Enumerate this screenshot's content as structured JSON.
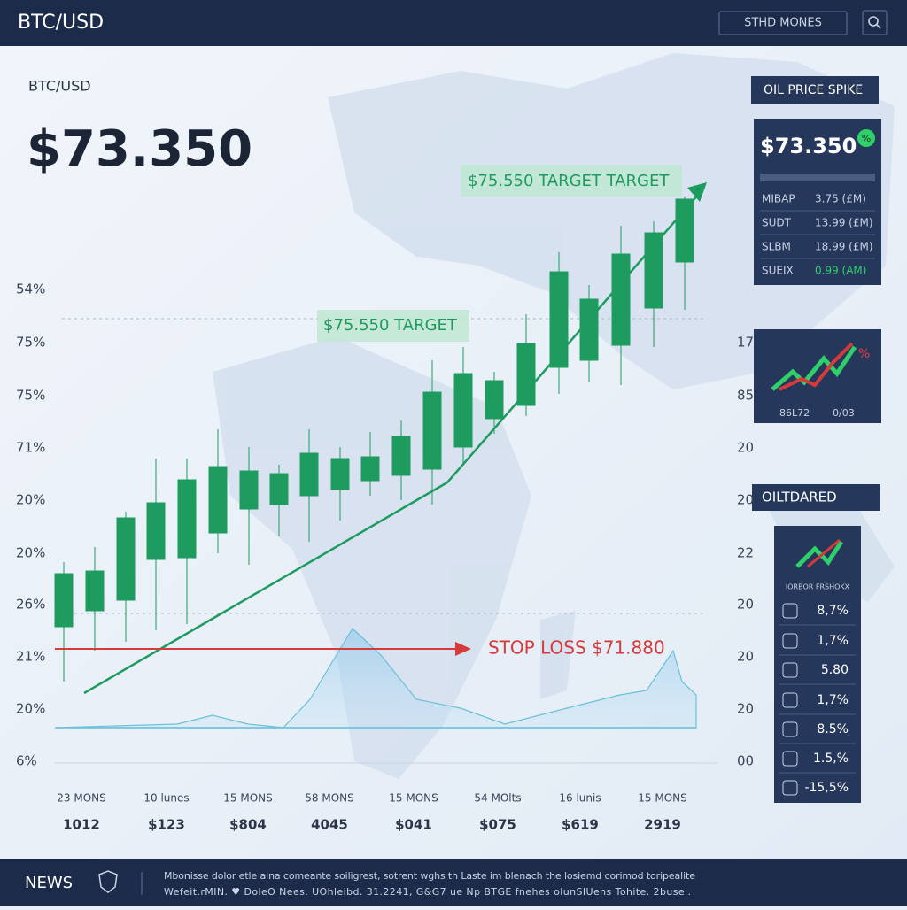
{
  "header": {
    "title": "BTC/USD",
    "search_button": "STHD MONES"
  },
  "main": {
    "pair": "BTC/USD",
    "price": "$73.350"
  },
  "annotations": {
    "target_top": "$75.550 TARGET TARGET",
    "target_mid": "$75.550 TARGET",
    "stop_loss": "STOP LOSS $71.880"
  },
  "left_axis": [
    "54%",
    "75%",
    "75%",
    "71%",
    "20%",
    "20%",
    "26%",
    "21%",
    "20%",
    "6%"
  ],
  "right_axis": [
    "17",
    "85",
    "20",
    "20",
    "22",
    "20",
    "20",
    "20",
    "00"
  ],
  "x_labels": [
    "23 MONS",
    "10 lunes",
    "15 MONS",
    "58 MONS",
    "15 MONS",
    "54 MOlts",
    "16 lunis",
    "15 MONS"
  ],
  "x_values": [
    "1012",
    "$123",
    "$804",
    "4045",
    "$041",
    "$075",
    "$619",
    "2919"
  ],
  "panel_spike": {
    "title": "OIL PRICE SPIKE",
    "price": "$73.350",
    "badge": "%",
    "rows": [
      [
        "MIBAP",
        "3.75 (£M)"
      ],
      [
        "SUDT",
        "13.99 (£M)"
      ],
      [
        "SLBM",
        "18.99 (£M)"
      ],
      [
        "SUEIX",
        "0.99 (AM)"
      ]
    ]
  },
  "panel_trend": {
    "badge": "%",
    "left": "86L72",
    "right": "0/03"
  },
  "panel_oil": {
    "title": "OILTDARED",
    "header": "IORBOR FRSHOKX",
    "rows": [
      "8,7%",
      "1,7%",
      "5.80",
      "1,7%",
      "8.5%",
      "1.5,%",
      "-15,5%"
    ]
  },
  "footer": {
    "label": "NEWS",
    "line1": "Mbonisse dolor etle aina comeante soiligrest, sotrent wghs th Laste im blenach the losiemd corimod toripealite",
    "line2": "Wefeit.rMIN. ♥ DoleO Nees. UOhleibd. 31.2241, G&G7 ue Np BTGE fnehes olunSIUens Tohite. 2busel."
  }
}
